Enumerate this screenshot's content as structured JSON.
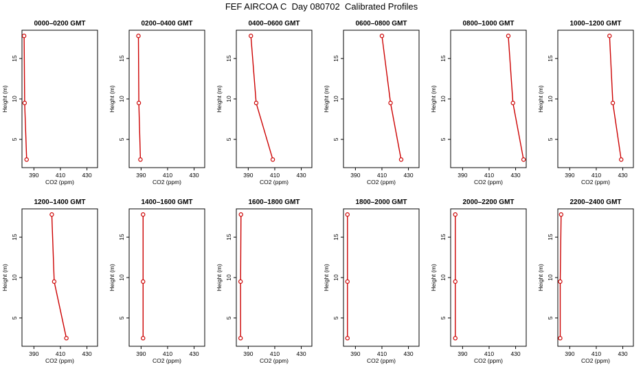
{
  "title": "FEF AIRCOA C  Day 080702  Calibrated Profiles",
  "colors": {
    "profile": "#cc0000",
    "axis": "#000000"
  },
  "chart_data": [
    {
      "type": "line",
      "title": "0000–0200 GMT",
      "xlabel": "CO2 (ppm)",
      "ylabel": "Height (m)",
      "xlim": [
        381,
        438
      ],
      "ylim": [
        1.5,
        18.5
      ],
      "xticks": [
        390,
        410,
        430
      ],
      "yticks": [
        5,
        10,
        15
      ],
      "x": [
        382.6,
        383.0,
        384.5
      ],
      "y": [
        17.8,
        9.5,
        2.5
      ],
      "grid": false
    },
    {
      "type": "line",
      "title": "0200–0400 GMT",
      "xlabel": "CO2 (ppm)",
      "ylabel": "Height (m)",
      "xlim": [
        381,
        438
      ],
      "ylim": [
        1.5,
        18.5
      ],
      "xticks": [
        390,
        410,
        430
      ],
      "yticks": [
        5,
        10,
        15
      ],
      "x": [
        388.0,
        388.3,
        389.5
      ],
      "y": [
        17.8,
        9.5,
        2.5
      ],
      "grid": false
    },
    {
      "type": "line",
      "title": "0400–0600 GMT",
      "xlabel": "CO2 (ppm)",
      "ylabel": "Height (m)",
      "xlim": [
        381,
        438
      ],
      "ylim": [
        1.5,
        18.5
      ],
      "xticks": [
        390,
        410,
        430
      ],
      "yticks": [
        5,
        10,
        15
      ],
      "x": [
        392.0,
        396.0,
        408.5
      ],
      "y": [
        17.8,
        9.5,
        2.5
      ],
      "grid": false
    },
    {
      "type": "line",
      "title": "0600–0800 GMT",
      "xlabel": "CO2 (ppm)",
      "ylabel": "Height (m)",
      "xlim": [
        381,
        438
      ],
      "ylim": [
        1.5,
        18.5
      ],
      "xticks": [
        390,
        410,
        430
      ],
      "yticks": [
        5,
        10,
        15
      ],
      "x": [
        410.0,
        416.5,
        424.5
      ],
      "y": [
        17.8,
        9.5,
        2.5
      ],
      "grid": false
    },
    {
      "type": "line",
      "title": "0800–1000 GMT",
      "xlabel": "CO2 (ppm)",
      "ylabel": "Height (m)",
      "xlim": [
        381,
        438
      ],
      "ylim": [
        1.5,
        18.5
      ],
      "xticks": [
        390,
        410,
        430
      ],
      "yticks": [
        5,
        10,
        15
      ],
      "x": [
        424.5,
        428.0,
        436.0
      ],
      "y": [
        17.8,
        9.5,
        2.5
      ],
      "grid": false
    },
    {
      "type": "line",
      "title": "1000–1200 GMT",
      "xlabel": "CO2 (ppm)",
      "ylabel": "Height (m)",
      "xlim": [
        381,
        438
      ],
      "ylim": [
        1.5,
        18.5
      ],
      "xticks": [
        390,
        410,
        430
      ],
      "yticks": [
        5,
        10,
        15
      ],
      "x": [
        420.0,
        422.5,
        428.8
      ],
      "y": [
        17.8,
        9.5,
        2.5
      ],
      "grid": false
    },
    {
      "type": "line",
      "title": "1200–1400 GMT",
      "xlabel": "CO2 (ppm)",
      "ylabel": "Height (m)",
      "xlim": [
        381,
        438
      ],
      "ylim": [
        1.5,
        18.5
      ],
      "xticks": [
        390,
        410,
        430
      ],
      "yticks": [
        5,
        10,
        15
      ],
      "x": [
        403.5,
        405.3,
        414.5
      ],
      "y": [
        17.8,
        9.5,
        2.5
      ],
      "grid": false
    },
    {
      "type": "line",
      "title": "1400–1600 GMT",
      "xlabel": "CO2 (ppm)",
      "ylabel": "Height (m)",
      "xlim": [
        381,
        438
      ],
      "ylim": [
        1.5,
        18.5
      ],
      "xticks": [
        390,
        410,
        430
      ],
      "yticks": [
        5,
        10,
        15
      ],
      "x": [
        391.5,
        391.5,
        391.5
      ],
      "y": [
        17.8,
        9.5,
        2.5
      ],
      "grid": false
    },
    {
      "type": "line",
      "title": "1600–1800 GMT",
      "xlabel": "CO2 (ppm)",
      "ylabel": "Height (m)",
      "xlim": [
        381,
        438
      ],
      "ylim": [
        1.5,
        18.5
      ],
      "xticks": [
        390,
        410,
        430
      ],
      "yticks": [
        5,
        10,
        15
      ],
      "x": [
        384.5,
        384.2,
        384.2
      ],
      "y": [
        17.8,
        9.5,
        2.5
      ],
      "grid": false
    },
    {
      "type": "line",
      "title": "1800–2000 GMT",
      "xlabel": "CO2 (ppm)",
      "ylabel": "Height (m)",
      "xlim": [
        381,
        438
      ],
      "ylim": [
        1.5,
        18.5
      ],
      "xticks": [
        390,
        410,
        430
      ],
      "yticks": [
        5,
        10,
        15
      ],
      "x": [
        384.0,
        384.0,
        384.0
      ],
      "y": [
        17.8,
        9.5,
        2.5
      ],
      "grid": false
    },
    {
      "type": "line",
      "title": "2000–2200 GMT",
      "xlabel": "CO2 (ppm)",
      "ylabel": "Height (m)",
      "xlim": [
        381,
        438
      ],
      "ylim": [
        1.5,
        18.5
      ],
      "xticks": [
        390,
        410,
        430
      ],
      "yticks": [
        5,
        10,
        15
      ],
      "x": [
        384.5,
        384.5,
        384.5
      ],
      "y": [
        17.8,
        9.5,
        2.5
      ],
      "grid": false
    },
    {
      "type": "line",
      "title": "2200–2400 GMT",
      "xlabel": "CO2 (ppm)",
      "ylabel": "Height (m)",
      "xlim": [
        381,
        438
      ],
      "ylim": [
        1.5,
        18.5
      ],
      "xticks": [
        390,
        410,
        430
      ],
      "yticks": [
        5,
        10,
        15
      ],
      "x": [
        383.5,
        382.8,
        382.8
      ],
      "y": [
        17.8,
        9.5,
        2.5
      ],
      "grid": false
    }
  ]
}
